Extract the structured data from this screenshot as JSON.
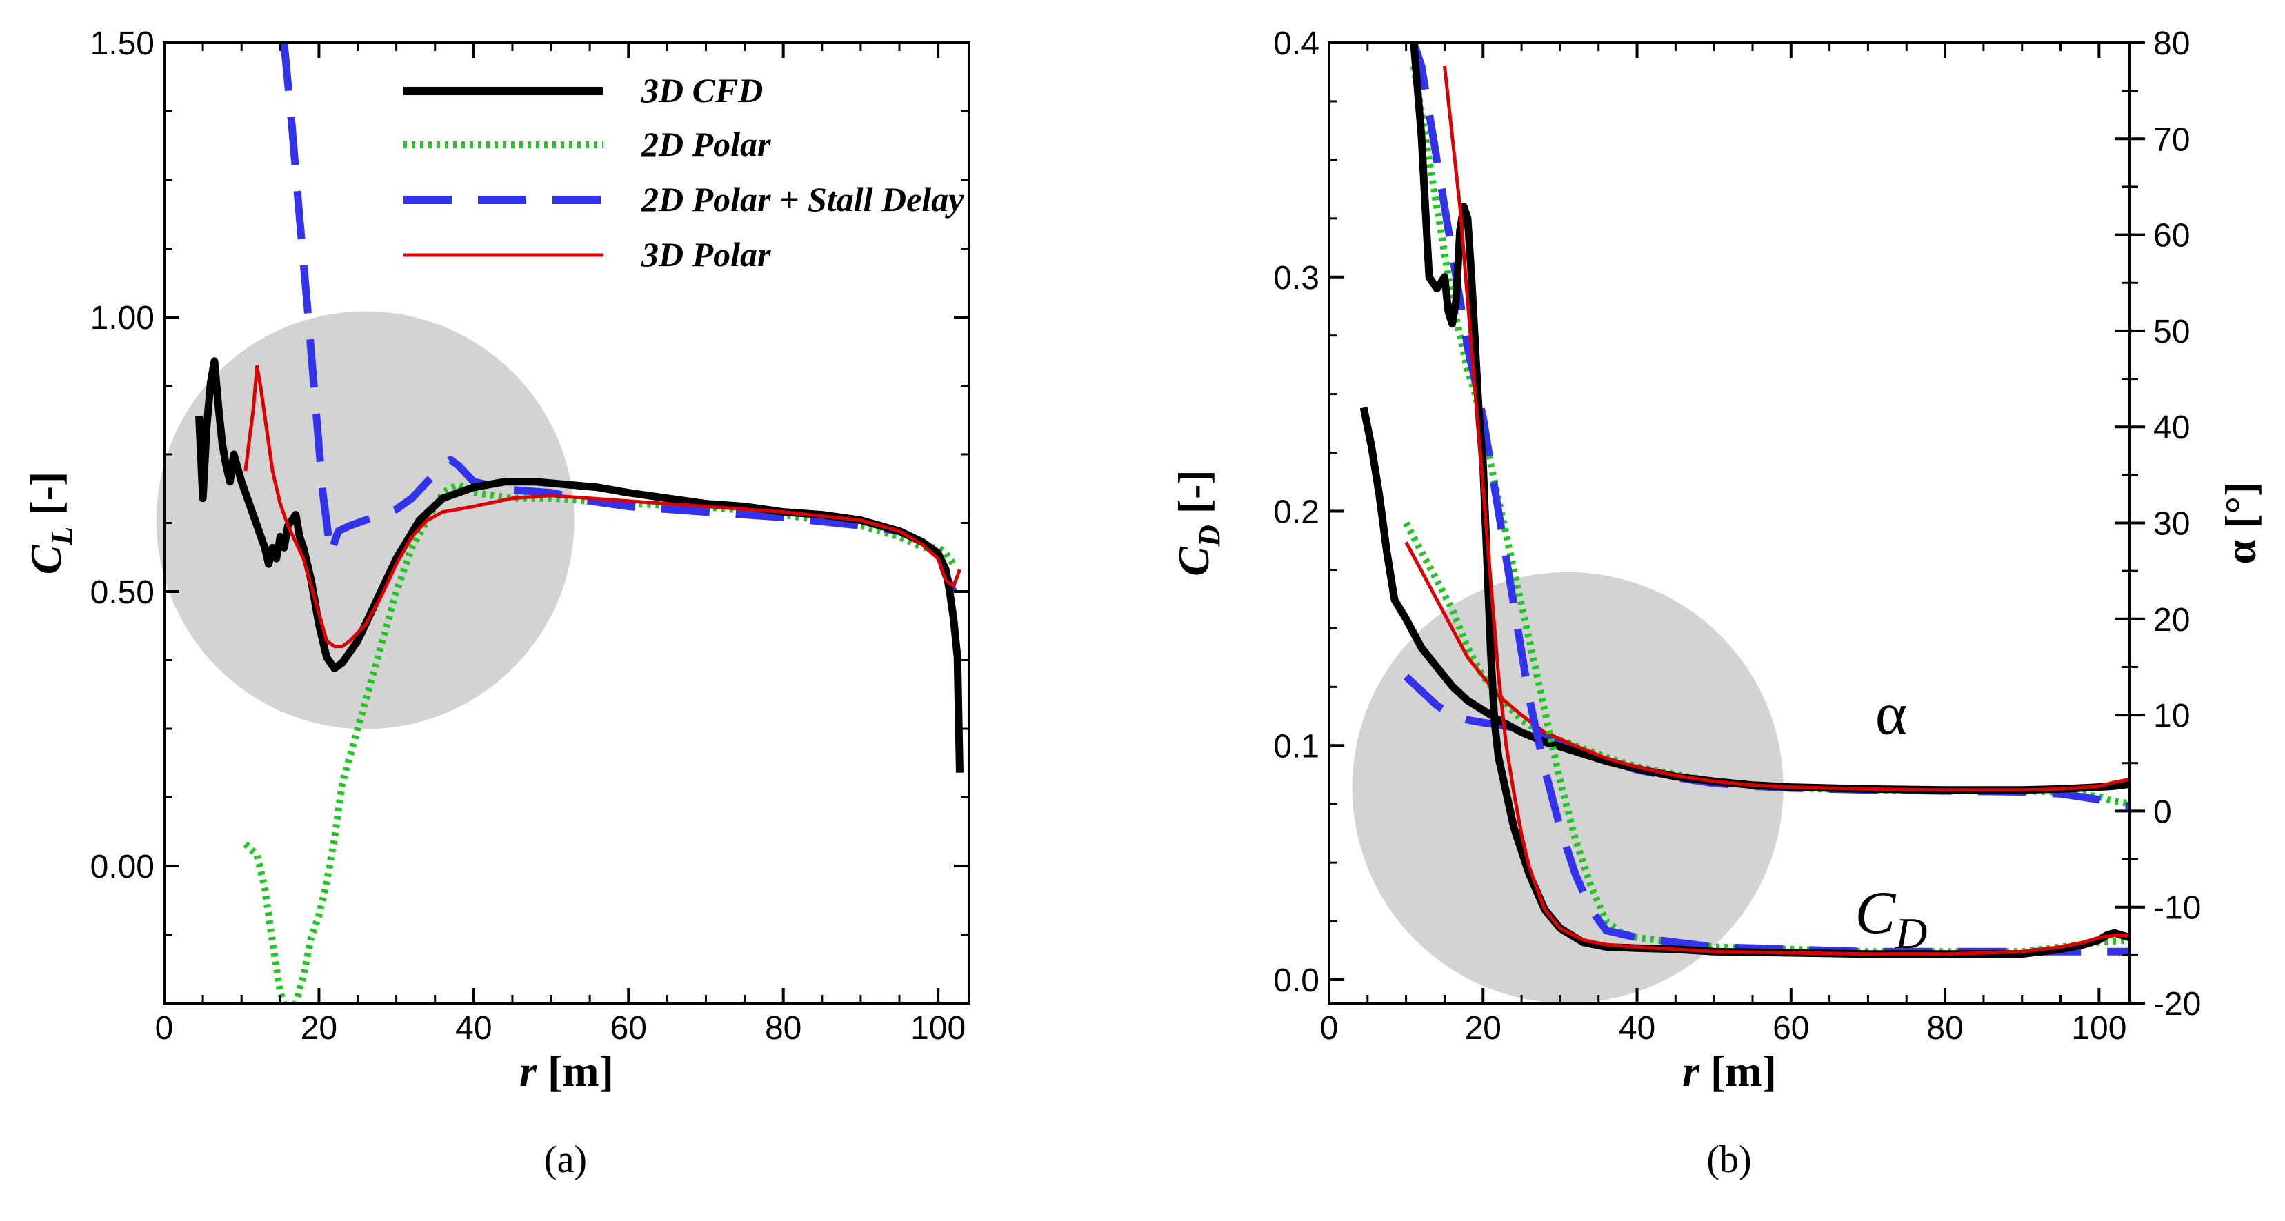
{
  "chart_data": [
    {
      "type": "line",
      "id": "a",
      "caption": "(a)",
      "xlabel_var": "r",
      "xlabel_unit": " [m]",
      "ylabel_var": "C",
      "ylabel_sub": "L",
      "ylabel_unit": " [-]",
      "xlim": [
        0,
        104
      ],
      "ylim": [
        -0.25,
        1.5
      ],
      "xticks": [
        0,
        20,
        40,
        60,
        80,
        100
      ],
      "xtick_labels": [
        "0",
        "20",
        "40",
        "60",
        "80",
        "100"
      ],
      "yticks": [
        0,
        0.5,
        1.0,
        1.5
      ],
      "ytick_labels": [
        "0.00",
        "0.50",
        "1.00",
        "1.50"
      ],
      "highlight_circle": {
        "cx": 26,
        "cy": 0.63,
        "r_data_x": 27
      },
      "legend": [
        {
          "label": "3D CFD",
          "color": "#000000",
          "style": "solid-thick"
        },
        {
          "label": "2D Polar",
          "color": "#1ec81e",
          "style": "dotted"
        },
        {
          "label": "2D Polar + Stall Delay",
          "color": "#3333ee",
          "style": "dashed"
        },
        {
          "label": "3D Polar",
          "color": "#dd0000",
          "style": "solid-thin"
        }
      ],
      "series": [
        {
          "name": "3D CFD",
          "color": "#000000",
          "style": "solid-thick",
          "x": [
            4.5,
            5,
            5.5,
            6,
            6.5,
            7,
            7.5,
            8,
            8.5,
            9,
            10,
            11,
            12,
            13,
            13.5,
            14,
            14.5,
            15,
            15.5,
            16,
            17,
            17.5,
            18,
            19,
            20,
            21,
            22,
            23,
            25,
            27,
            30,
            33,
            36,
            40,
            44,
            48,
            52,
            56,
            60,
            65,
            70,
            75,
            80,
            85,
            90,
            95,
            98,
            100,
            101,
            101.5,
            102,
            102.5,
            102.8
          ],
          "y": [
            0.82,
            0.67,
            0.8,
            0.88,
            0.92,
            0.84,
            0.77,
            0.73,
            0.7,
            0.75,
            0.7,
            0.66,
            0.62,
            0.58,
            0.55,
            0.58,
            0.56,
            0.6,
            0.58,
            0.62,
            0.64,
            0.6,
            0.58,
            0.52,
            0.44,
            0.38,
            0.36,
            0.37,
            0.41,
            0.47,
            0.56,
            0.63,
            0.67,
            0.69,
            0.7,
            0.7,
            0.695,
            0.69,
            0.68,
            0.67,
            0.66,
            0.655,
            0.645,
            0.64,
            0.63,
            0.61,
            0.59,
            0.57,
            0.54,
            0.5,
            0.45,
            0.38,
            0.17
          ]
        },
        {
          "name": "2D Polar",
          "color": "#1ec81e",
          "style": "dotted",
          "x": [
            10.5,
            12,
            13,
            14,
            15,
            16,
            17,
            18,
            19,
            20,
            21,
            22,
            23,
            24,
            26,
            28,
            30,
            32,
            34,
            36,
            38,
            40,
            45,
            50,
            55,
            60,
            70,
            80,
            90,
            95,
            98,
            100,
            101,
            102
          ],
          "y": [
            0.04,
            0.02,
            -0.04,
            -0.14,
            -0.23,
            -0.27,
            -0.25,
            -0.2,
            -0.13,
            -0.09,
            -0.03,
            0.05,
            0.15,
            0.2,
            0.3,
            0.4,
            0.5,
            0.58,
            0.63,
            0.68,
            0.695,
            0.68,
            0.67,
            0.67,
            0.665,
            0.66,
            0.655,
            0.64,
            0.62,
            0.6,
            0.58,
            0.58,
            0.57,
            0.55
          ]
        },
        {
          "name": "2D Polar + Stall Delay",
          "color": "#3333ee",
          "style": "dashed",
          "x": [
            15.5,
            16.5,
            17.5,
            18.5,
            19.5,
            20.5,
            21.5,
            22.5,
            24,
            26,
            28,
            30,
            32,
            34,
            36,
            37,
            38,
            40,
            45,
            50,
            55,
            60,
            70,
            80,
            90,
            95,
            98,
            100,
            101,
            102
          ],
          "y": [
            1.5,
            1.35,
            1.18,
            1.02,
            0.85,
            0.68,
            0.57,
            0.61,
            0.62,
            0.63,
            0.64,
            0.65,
            0.67,
            0.7,
            0.73,
            0.74,
            0.73,
            0.7,
            0.685,
            0.68,
            0.665,
            0.655,
            0.645,
            0.635,
            0.62,
            0.61,
            0.59,
            0.57,
            0.53,
            0.5
          ]
        },
        {
          "name": "3D Polar",
          "color": "#dd0000",
          "style": "solid-thin",
          "x": [
            10.5,
            11.5,
            12,
            12.5,
            13,
            14,
            15,
            16,
            17,
            18,
            19,
            20,
            21,
            22,
            23,
            24,
            26,
            28,
            30,
            32,
            34,
            36,
            40,
            45,
            50,
            55,
            60,
            70,
            80,
            90,
            95,
            98,
            100,
            101,
            102,
            102.8
          ],
          "y": [
            0.72,
            0.83,
            0.91,
            0.87,
            0.82,
            0.72,
            0.66,
            0.62,
            0.59,
            0.56,
            0.51,
            0.46,
            0.41,
            0.4,
            0.4,
            0.41,
            0.44,
            0.49,
            0.55,
            0.6,
            0.63,
            0.645,
            0.655,
            0.67,
            0.675,
            0.67,
            0.665,
            0.655,
            0.645,
            0.63,
            0.61,
            0.585,
            0.56,
            0.52,
            0.51,
            0.54
          ]
        }
      ]
    },
    {
      "type": "line",
      "id": "b",
      "caption": "(b)",
      "xlabel_var": "r",
      "xlabel_unit": " [m]",
      "ylabel_var": "C",
      "ylabel_sub": "D",
      "ylabel_unit": " [-]",
      "y2label": "α [°]",
      "xlim": [
        0,
        104
      ],
      "ylim": [
        -0.01,
        0.4
      ],
      "y2lim": [
        -20,
        80
      ],
      "xticks": [
        0,
        20,
        40,
        60,
        80,
        100
      ],
      "xtick_labels": [
        "0",
        "20",
        "40",
        "60",
        "80",
        "100"
      ],
      "yticks": [
        0,
        0.1,
        0.2,
        0.3,
        0.4
      ],
      "ytick_labels": [
        "0.0",
        "0.1",
        "0.2",
        "0.3",
        "0.4"
      ],
      "y2ticks": [
        -20,
        -10,
        0,
        10,
        20,
        30,
        40,
        50,
        60,
        70,
        80
      ],
      "y2tick_labels": [
        "-20",
        "-10",
        "0",
        "10",
        "20",
        "30",
        "40",
        "50",
        "60",
        "70",
        "80"
      ],
      "highlight_circle": {
        "cx": 31,
        "cy": 0.082,
        "r_data_x": 28
      },
      "annotations": [
        {
          "text": "α",
          "x": 73,
          "y": 0.105
        },
        {
          "text_var": "C",
          "text_sub": "D",
          "x": 73,
          "y": 0.02
        }
      ],
      "alpha_series": [
        {
          "name": "3D CFD",
          "color": "#000000",
          "style": "solid-thick",
          "x": [
            4.5,
            5.5,
            6.5,
            7.5,
            8.5,
            10,
            12,
            14,
            16,
            18,
            20,
            22,
            25,
            28,
            32,
            36,
            40,
            45,
            50,
            55,
            60,
            70,
            80,
            90,
            95,
            100,
            102,
            104
          ],
          "y": [
            42,
            38,
            33,
            27,
            22,
            20,
            17,
            15,
            13,
            11.5,
            10.5,
            9.5,
            8.2,
            7.2,
            6.2,
            5.2,
            4.4,
            3.6,
            3.1,
            2.7,
            2.5,
            2.3,
            2.2,
            2.2,
            2.3,
            2.5,
            2.6,
            2.8
          ]
        },
        {
          "name": "2D Polar",
          "color": "#1ec81e",
          "style": "dotted",
          "x": [
            10,
            12,
            14,
            16,
            18,
            20,
            22,
            25,
            28,
            32,
            36,
            40,
            45,
            50,
            55,
            60,
            70,
            80,
            90,
            95,
            100,
            102,
            104
          ],
          "y": [
            30,
            27,
            24,
            21,
            17,
            14,
            12,
            9.5,
            8,
            6.8,
            5.6,
            4.6,
            3.8,
            3.1,
            2.7,
            2.4,
            2.2,
            2.1,
            2.1,
            2.0,
            1.5,
            1.0,
            0.8
          ]
        },
        {
          "name": "2D Polar + Stall Delay",
          "color": "#3333ee",
          "style": "dashed",
          "x": [
            10,
            12,
            14,
            16,
            18,
            20,
            22,
            25,
            28,
            32,
            36,
            40,
            45,
            50,
            55,
            60,
            70,
            80,
            90,
            95,
            100,
            102,
            104
          ],
          "y": [
            14,
            12.5,
            11,
            10,
            9.5,
            9.2,
            9.0,
            8.5,
            7.8,
            6.5,
            5.3,
            4.3,
            3.5,
            2.9,
            2.6,
            2.4,
            2.2,
            2.1,
            2.0,
            1.8,
            1.2,
            0.8,
            0.5
          ]
        },
        {
          "name": "3D Polar",
          "color": "#dd0000",
          "style": "solid-thin",
          "x": [
            10,
            12,
            14,
            16,
            18,
            20,
            22,
            25,
            28,
            32,
            36,
            40,
            45,
            50,
            55,
            60,
            70,
            80,
            90,
            95,
            100,
            102,
            104
          ],
          "y": [
            28,
            25,
            22,
            19,
            16,
            14,
            12,
            10,
            8.2,
            6.8,
            5.5,
            4.6,
            3.7,
            3.1,
            2.7,
            2.5,
            2.3,
            2.2,
            2.2,
            2.3,
            2.6,
            3.0,
            3.3
          ]
        }
      ],
      "cd_series": [
        {
          "name": "3D CFD",
          "color": "#000000",
          "style": "solid-thick",
          "x": [
            11,
            12,
            13,
            14,
            15,
            15.5,
            16,
            16.5,
            17,
            17.5,
            18,
            18.5,
            19,
            19.5,
            20,
            20.5,
            21,
            21.5,
            22,
            23,
            24,
            26,
            28,
            30,
            33,
            36,
            40,
            45,
            50,
            60,
            70,
            80,
            90,
            95,
            98,
            100,
            101,
            102,
            103,
            104
          ],
          "y": [
            0.4,
            0.36,
            0.3,
            0.295,
            0.3,
            0.285,
            0.28,
            0.29,
            0.32,
            0.33,
            0.325,
            0.3,
            0.27,
            0.24,
            0.22,
            0.18,
            0.14,
            0.11,
            0.095,
            0.08,
            0.065,
            0.045,
            0.03,
            0.022,
            0.016,
            0.014,
            0.0135,
            0.013,
            0.012,
            0.0115,
            0.011,
            0.011,
            0.011,
            0.013,
            0.015,
            0.017,
            0.019,
            0.02,
            0.019,
            0.018
          ]
        },
        {
          "name": "2D Polar",
          "color": "#1ec81e",
          "style": "dotted",
          "x": [
            11,
            12,
            13,
            14,
            15,
            16,
            17,
            18,
            19,
            20,
            21,
            22,
            23,
            24,
            25,
            26,
            28,
            30,
            32,
            34,
            36,
            38,
            40,
            45,
            50,
            60,
            70,
            80,
            90,
            95,
            100,
            104
          ],
          "y": [
            0.39,
            0.37,
            0.35,
            0.33,
            0.31,
            0.29,
            0.275,
            0.26,
            0.25,
            0.235,
            0.22,
            0.205,
            0.19,
            0.175,
            0.16,
            0.145,
            0.115,
            0.085,
            0.06,
            0.04,
            0.025,
            0.02,
            0.018,
            0.016,
            0.014,
            0.013,
            0.012,
            0.012,
            0.012,
            0.014,
            0.016,
            0.017
          ]
        },
        {
          "name": "2D Polar + Stall Delay",
          "color": "#3333ee",
          "style": "dashed",
          "x": [
            11,
            12,
            13,
            14,
            15,
            16,
            17,
            18,
            19,
            20,
            21,
            22,
            23,
            24,
            25,
            26,
            28,
            30,
            32,
            34,
            36,
            40,
            45,
            50,
            60,
            70,
            80,
            90,
            100,
            104
          ],
          "y": [
            0.4,
            0.39,
            0.37,
            0.35,
            0.33,
            0.31,
            0.29,
            0.27,
            0.255,
            0.24,
            0.22,
            0.2,
            0.18,
            0.16,
            0.14,
            0.12,
            0.09,
            0.065,
            0.045,
            0.03,
            0.021,
            0.018,
            0.016,
            0.014,
            0.013,
            0.012,
            0.012,
            0.012,
            0.012,
            0.012
          ]
        },
        {
          "name": "3D Polar",
          "color": "#dd0000",
          "style": "solid-thin",
          "x": [
            15,
            16,
            17,
            18,
            19,
            20,
            21,
            22,
            23,
            24,
            25,
            26,
            28,
            30,
            33,
            36,
            40,
            45,
            50,
            60,
            70,
            80,
            90,
            95,
            98,
            100,
            102,
            104
          ],
          "y": [
            0.39,
            0.36,
            0.33,
            0.29,
            0.25,
            0.21,
            0.17,
            0.13,
            0.1,
            0.08,
            0.062,
            0.048,
            0.03,
            0.022,
            0.017,
            0.015,
            0.014,
            0.013,
            0.012,
            0.0115,
            0.011,
            0.011,
            0.012,
            0.014,
            0.016,
            0.018,
            0.019,
            0.019
          ]
        }
      ]
    }
  ]
}
